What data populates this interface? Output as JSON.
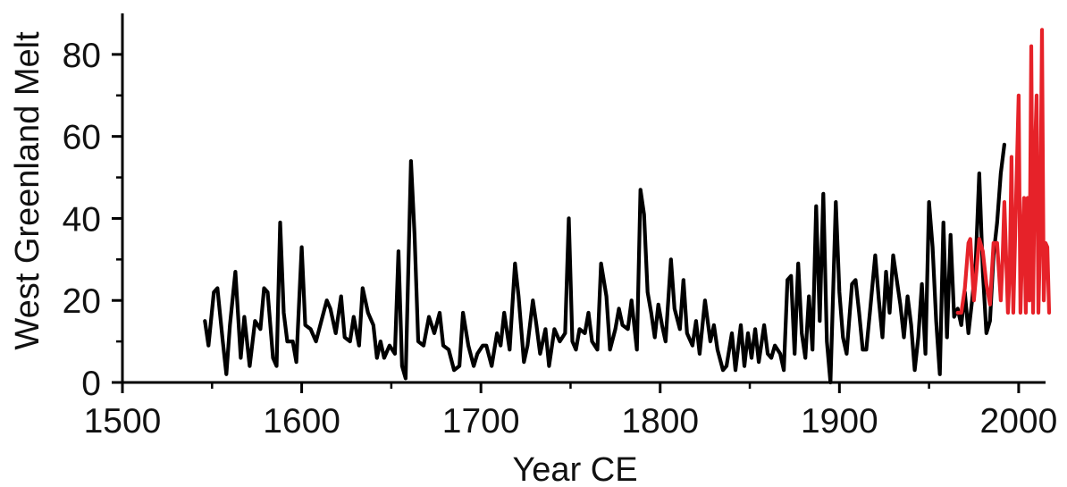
{
  "chart_data": {
    "type": "line",
    "title": "",
    "xlabel": "Year CE",
    "ylabel": "West Greenland Melt",
    "xlim": [
      1500,
      2015
    ],
    "ylim": [
      0,
      90
    ],
    "x_ticks": [
      1500,
      1600,
      1700,
      1800,
      1900,
      2000
    ],
    "y_ticks": [
      0,
      20,
      40,
      60,
      80
    ],
    "grid": false,
    "legend": "none",
    "series": [
      {
        "color": "#000000",
        "points": [
          [
            1546,
            15
          ],
          [
            1548,
            9
          ],
          [
            1551,
            22
          ],
          [
            1553,
            23
          ],
          [
            1556,
            10
          ],
          [
            1558,
            2
          ],
          [
            1560,
            14
          ],
          [
            1563,
            27
          ],
          [
            1566,
            6
          ],
          [
            1568,
            16
          ],
          [
            1571,
            4
          ],
          [
            1574,
            15
          ],
          [
            1577,
            13
          ],
          [
            1579,
            23
          ],
          [
            1581,
            22
          ],
          [
            1584,
            6
          ],
          [
            1586,
            4
          ],
          [
            1588,
            39
          ],
          [
            1590,
            17
          ],
          [
            1592,
            10
          ],
          [
            1595,
            10
          ],
          [
            1597,
            5
          ],
          [
            1600,
            33
          ],
          [
            1602,
            14
          ],
          [
            1605,
            13
          ],
          [
            1608,
            10
          ],
          [
            1611,
            15
          ],
          [
            1614,
            20
          ],
          [
            1616,
            18
          ],
          [
            1619,
            12
          ],
          [
            1622,
            21
          ],
          [
            1624,
            11
          ],
          [
            1627,
            10
          ],
          [
            1629,
            16
          ],
          [
            1632,
            9
          ],
          [
            1634,
            23
          ],
          [
            1637,
            17
          ],
          [
            1640,
            14
          ],
          [
            1642,
            6
          ],
          [
            1644,
            10
          ],
          [
            1646,
            6
          ],
          [
            1649,
            9
          ],
          [
            1652,
            7
          ],
          [
            1654,
            32
          ],
          [
            1656,
            4
          ],
          [
            1658,
            1
          ],
          [
            1661,
            54
          ],
          [
            1663,
            36
          ],
          [
            1665,
            10
          ],
          [
            1668,
            9
          ],
          [
            1671,
            16
          ],
          [
            1674,
            12
          ],
          [
            1677,
            17
          ],
          [
            1679,
            9
          ],
          [
            1682,
            8
          ],
          [
            1685,
            3
          ],
          [
            1688,
            4
          ],
          [
            1690,
            17
          ],
          [
            1693,
            9
          ],
          [
            1696,
            4
          ],
          [
            1698,
            7
          ],
          [
            1701,
            9
          ],
          [
            1703,
            9
          ],
          [
            1706,
            4
          ],
          [
            1709,
            12
          ],
          [
            1711,
            9
          ],
          [
            1713,
            17
          ],
          [
            1716,
            8
          ],
          [
            1719,
            29
          ],
          [
            1721,
            21
          ],
          [
            1724,
            5
          ],
          [
            1726,
            9
          ],
          [
            1729,
            20
          ],
          [
            1731,
            14
          ],
          [
            1733,
            7
          ],
          [
            1736,
            13
          ],
          [
            1738,
            4
          ],
          [
            1741,
            13
          ],
          [
            1744,
            10
          ],
          [
            1747,
            12
          ],
          [
            1749,
            40
          ],
          [
            1751,
            10
          ],
          [
            1753,
            8
          ],
          [
            1755,
            13
          ],
          [
            1758,
            12
          ],
          [
            1760,
            17
          ],
          [
            1762,
            10
          ],
          [
            1765,
            8
          ],
          [
            1767,
            29
          ],
          [
            1770,
            21
          ],
          [
            1772,
            8
          ],
          [
            1775,
            13
          ],
          [
            1777,
            18
          ],
          [
            1779,
            14
          ],
          [
            1782,
            13
          ],
          [
            1784,
            20
          ],
          [
            1787,
            8
          ],
          [
            1789,
            47
          ],
          [
            1791,
            41
          ],
          [
            1793,
            22
          ],
          [
            1795,
            17
          ],
          [
            1797,
            11
          ],
          [
            1799,
            19
          ],
          [
            1801,
            14
          ],
          [
            1803,
            10
          ],
          [
            1806,
            30
          ],
          [
            1808,
            18
          ],
          [
            1811,
            13
          ],
          [
            1813,
            25
          ],
          [
            1815,
            12
          ],
          [
            1818,
            9
          ],
          [
            1820,
            15
          ],
          [
            1822,
            7
          ],
          [
            1825,
            20
          ],
          [
            1828,
            10
          ],
          [
            1830,
            14
          ],
          [
            1832,
            8
          ],
          [
            1835,
            3
          ],
          [
            1837,
            4
          ],
          [
            1840,
            12
          ],
          [
            1842,
            3
          ],
          [
            1845,
            14
          ],
          [
            1847,
            4
          ],
          [
            1849,
            12
          ],
          [
            1851,
            6
          ],
          [
            1853,
            13
          ],
          [
            1855,
            5
          ],
          [
            1858,
            14
          ],
          [
            1860,
            7
          ],
          [
            1862,
            6
          ],
          [
            1864,
            9
          ],
          [
            1867,
            7
          ],
          [
            1869,
            3
          ],
          [
            1871,
            25
          ],
          [
            1873,
            26
          ],
          [
            1875,
            7
          ],
          [
            1877,
            29
          ],
          [
            1879,
            12
          ],
          [
            1881,
            6
          ],
          [
            1883,
            21
          ],
          [
            1885,
            8
          ],
          [
            1887,
            43
          ],
          [
            1889,
            15
          ],
          [
            1891,
            46
          ],
          [
            1893,
            10
          ],
          [
            1895,
            0
          ],
          [
            1898,
            44
          ],
          [
            1900,
            22
          ],
          [
            1902,
            11
          ],
          [
            1904,
            7
          ],
          [
            1907,
            24
          ],
          [
            1909,
            25
          ],
          [
            1911,
            17
          ],
          [
            1913,
            8
          ],
          [
            1915,
            8
          ],
          [
            1917,
            17
          ],
          [
            1920,
            31
          ],
          [
            1922,
            20
          ],
          [
            1924,
            11
          ],
          [
            1926,
            27
          ],
          [
            1928,
            17
          ],
          [
            1930,
            31
          ],
          [
            1932,
            25
          ],
          [
            1934,
            19
          ],
          [
            1936,
            11
          ],
          [
            1938,
            21
          ],
          [
            1940,
            14
          ],
          [
            1942,
            3
          ],
          [
            1944,
            11
          ],
          [
            1946,
            24
          ],
          [
            1948,
            7
          ],
          [
            1950,
            44
          ],
          [
            1952,
            33
          ],
          [
            1954,
            15
          ],
          [
            1956,
            2
          ],
          [
            1958,
            39
          ],
          [
            1960,
            11
          ],
          [
            1962,
            36
          ],
          [
            1964,
            16
          ],
          [
            1966,
            18
          ],
          [
            1968,
            14
          ],
          [
            1970,
            22
          ],
          [
            1972,
            12
          ],
          [
            1974,
            20
          ],
          [
            1976,
            29
          ],
          [
            1978,
            51
          ],
          [
            1980,
            27
          ],
          [
            1982,
            12
          ],
          [
            1984,
            15
          ],
          [
            1986,
            31
          ],
          [
            1988,
            39
          ],
          [
            1990,
            51
          ],
          [
            1992,
            58
          ]
        ]
      },
      {
        "color": "#e62229",
        "points": [
          [
            1966,
            17
          ],
          [
            1968,
            17
          ],
          [
            1970,
            23
          ],
          [
            1972,
            34
          ],
          [
            1973,
            35
          ],
          [
            1975,
            20
          ],
          [
            1977,
            30
          ],
          [
            1978,
            35
          ],
          [
            1980,
            32
          ],
          [
            1982,
            24
          ],
          [
            1984,
            19
          ],
          [
            1986,
            34
          ],
          [
            1988,
            34
          ],
          [
            1990,
            20
          ],
          [
            1991,
            30
          ],
          [
            1992,
            44
          ],
          [
            1994,
            17
          ],
          [
            1995,
            27
          ],
          [
            1996,
            55
          ],
          [
            1997,
            17
          ],
          [
            1998,
            35
          ],
          [
            2000,
            70
          ],
          [
            2001,
            17
          ],
          [
            2002,
            33
          ],
          [
            2003,
            45
          ],
          [
            2004,
            17
          ],
          [
            2005,
            45
          ],
          [
            2006,
            20
          ],
          [
            2007,
            82
          ],
          [
            2008,
            17
          ],
          [
            2009,
            55
          ],
          [
            2010,
            70
          ],
          [
            2011,
            17
          ],
          [
            2012,
            36
          ],
          [
            2013,
            86
          ],
          [
            2014,
            20
          ],
          [
            2015,
            34
          ],
          [
            2016,
            33
          ],
          [
            2017,
            17
          ]
        ]
      }
    ]
  }
}
